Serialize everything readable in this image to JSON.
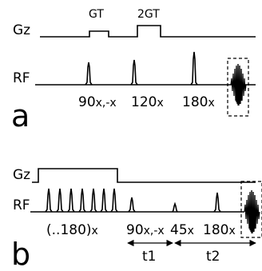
{
  "panel_a": {
    "panel_letter": "a",
    "gz_axis": "Gz",
    "rf_axis": "RF",
    "gradient_1": "GT",
    "gradient_2": "2GT",
    "pulse_90": "90",
    "pulse_90_phase": "x,-x",
    "pulse_120": "120",
    "pulse_120_phase": "x",
    "pulse_180": "180",
    "pulse_180_phase": "x"
  },
  "panel_b": {
    "panel_letter": "b",
    "gz_axis": "Gz",
    "rf_axis": "RF",
    "pulse_train": "(..180)",
    "pulse_train_phase": "x",
    "pulse_90": "90",
    "pulse_90_phase": "x,-x",
    "pulse_45": "45",
    "pulse_45_phase": "x",
    "pulse_180": "180",
    "pulse_180_phase": "x",
    "delay_1": "t1",
    "delay_2": "t2"
  },
  "icons": [
    "arrow-left-icon",
    "arrow-right-icon"
  ]
}
